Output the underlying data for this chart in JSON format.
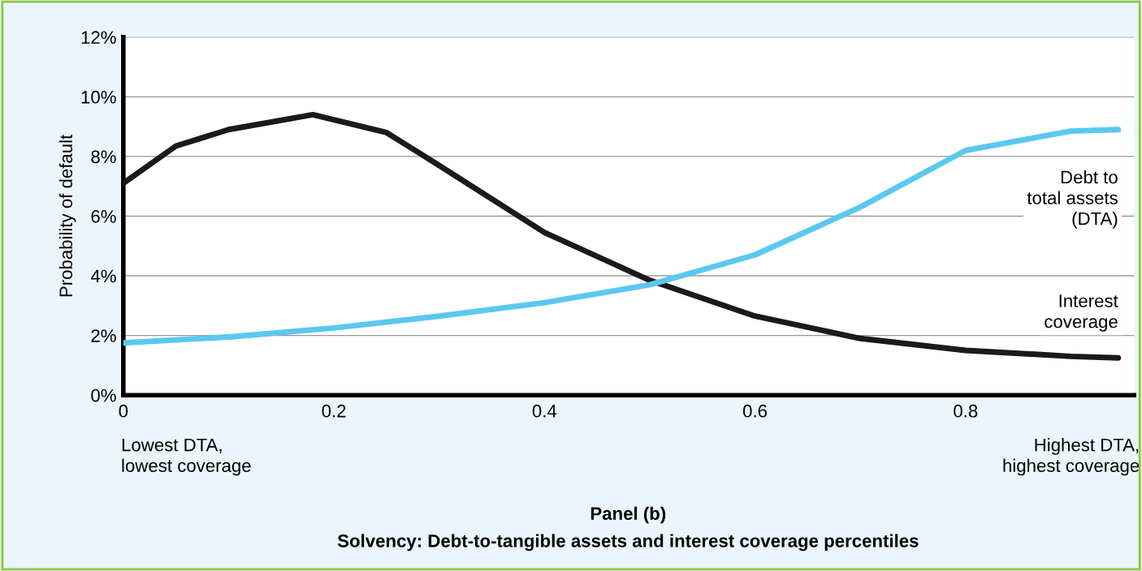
{
  "chart_data": {
    "type": "line",
    "title": "Panel (b)",
    "subtitle": "Solvency: Debt-to-tangible assets and interest coverage percentiles",
    "ylabel": "Probability of default",
    "annotations": [
      "Lowest DTA,\nlowest coverage",
      "Highest DTA,\nhighest coverage"
    ],
    "series": [
      {
        "name": "Interest\ncoverage",
        "color": "#1a1a1a",
        "x": [
          0,
          0.05,
          0.1,
          0.18,
          0.25,
          0.3,
          0.4,
          0.5,
          0.6,
          0.7,
          0.8,
          0.9,
          0.945
        ],
        "values": [
          7.1,
          8.35,
          8.9,
          9.4,
          8.8,
          7.7,
          5.45,
          3.85,
          2.65,
          1.9,
          1.5,
          1.3,
          1.25
        ]
      },
      {
        "name": "Debt to\ntotal assets\n(DTA)",
        "color": "#5bc8ef",
        "x": [
          0,
          0.1,
          0.2,
          0.3,
          0.4,
          0.5,
          0.6,
          0.7,
          0.8,
          0.9,
          0.945
        ],
        "values": [
          1.75,
          1.95,
          2.25,
          2.65,
          3.1,
          3.7,
          4.7,
          6.3,
          8.2,
          8.85,
          8.9
        ]
      }
    ],
    "xlim": [
      0,
      0.96
    ],
    "xticks": [
      0,
      0.2,
      0.4,
      0.6,
      0.8
    ],
    "ylim": [
      0,
      12
    ],
    "yticks": [
      {
        "value": 0,
        "label": "0%"
      },
      {
        "value": 2,
        "label": "2%"
      },
      {
        "value": 4,
        "label": "4%"
      },
      {
        "value": 6,
        "label": "6%"
      },
      {
        "value": 8,
        "label": "8%"
      },
      {
        "value": 10,
        "label": "10%"
      },
      {
        "value": 12,
        "label": "12%"
      }
    ],
    "grid": "y",
    "line_style": "solid",
    "legend": false
  }
}
